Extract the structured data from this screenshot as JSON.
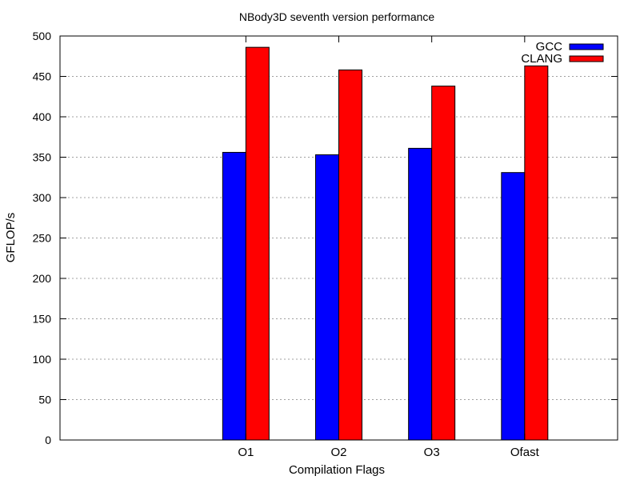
{
  "chart_data": {
    "type": "bar",
    "title": "NBody3D seventh version performance",
    "xlabel": "Compilation Flags",
    "ylabel": "GFLOP/s",
    "categories": [
      "O1",
      "O2",
      "O3",
      "Ofast"
    ],
    "series": [
      {
        "name": "GCC",
        "color": "#0000ff",
        "values": [
          356,
          353,
          361,
          331
        ]
      },
      {
        "name": "CLANG",
        "color": "#ff0000",
        "values": [
          486,
          458,
          438,
          463
        ]
      }
    ],
    "ylim": [
      0,
      500
    ],
    "yticks": [
      0,
      50,
      100,
      150,
      200,
      250,
      300,
      350,
      400,
      450,
      500
    ],
    "grid": true,
    "legend_position": "top-right"
  }
}
